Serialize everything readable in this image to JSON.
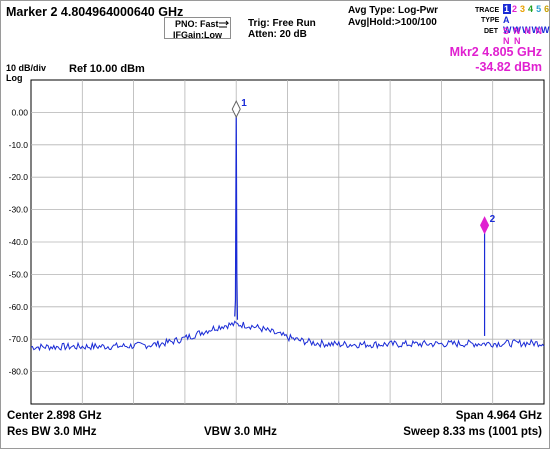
{
  "header": {
    "marker_title": "Marker 2 4.804964000640 GHz",
    "pno": "PNO: Fast",
    "if_gain": "IFGain:Low",
    "trigger": "Trig: Free Run",
    "atten": "Atten: 20 dB",
    "avg_type": "Avg Type: Log-Pwr",
    "avg_hold": "Avg|Hold:>100/100",
    "trace_label": "TRACE",
    "type_label": "TYPE",
    "det_label": "DET",
    "trace_numbers": [
      "1",
      "2",
      "3",
      "4",
      "5",
      "6"
    ],
    "type_row": "A WWWWW",
    "det_row": "S N N N N N"
  },
  "scale": {
    "scale_per_div": "10 dB/div",
    "log": "Log",
    "ref_level": "Ref 10.00 dBm"
  },
  "marker_readout": {
    "line1": "Mkr2 4.805 GHz",
    "line2": "-34.82 dBm"
  },
  "footer": {
    "center": "Center 2.898 GHz",
    "res_bw": "Res BW 3.0 MHz",
    "vbw": "VBW 3.0 MHz",
    "span": "Span 4.964 GHz",
    "sweep": "Sweep  8.33 ms (1001 pts)"
  },
  "colors": {
    "trace": "#1a2bd6",
    "marker2": "#e020d0",
    "grid": "#b4b4b4",
    "trace_active": "#1a2bd6"
  },
  "chart_data": {
    "type": "line",
    "xlabel": "",
    "ylabel": "",
    "ylim": [
      -90,
      10
    ],
    "x_units": "GHz",
    "xlim": [
      0.416,
      5.38
    ],
    "y_tick_labels": [
      "0.00",
      "-10.0",
      "-20.0",
      "-30.0",
      "-40.0",
      "-50.0",
      "-60.0",
      "-70.0",
      "-80.0"
    ],
    "y_ticks": [
      0,
      -10,
      -20,
      -30,
      -40,
      -50,
      -60,
      -70,
      -80
    ],
    "grid": true,
    "noise_floor_dbm": -70,
    "markers": [
      {
        "label": "1",
        "x": 2.402,
        "y": 1.0,
        "active": false
      },
      {
        "label": "2",
        "x": 4.805,
        "y": -34.82,
        "active": true
      }
    ],
    "peaks": [
      {
        "x": 2.402,
        "y": 1.0
      },
      {
        "x": 4.805,
        "y": -34.82
      }
    ]
  }
}
